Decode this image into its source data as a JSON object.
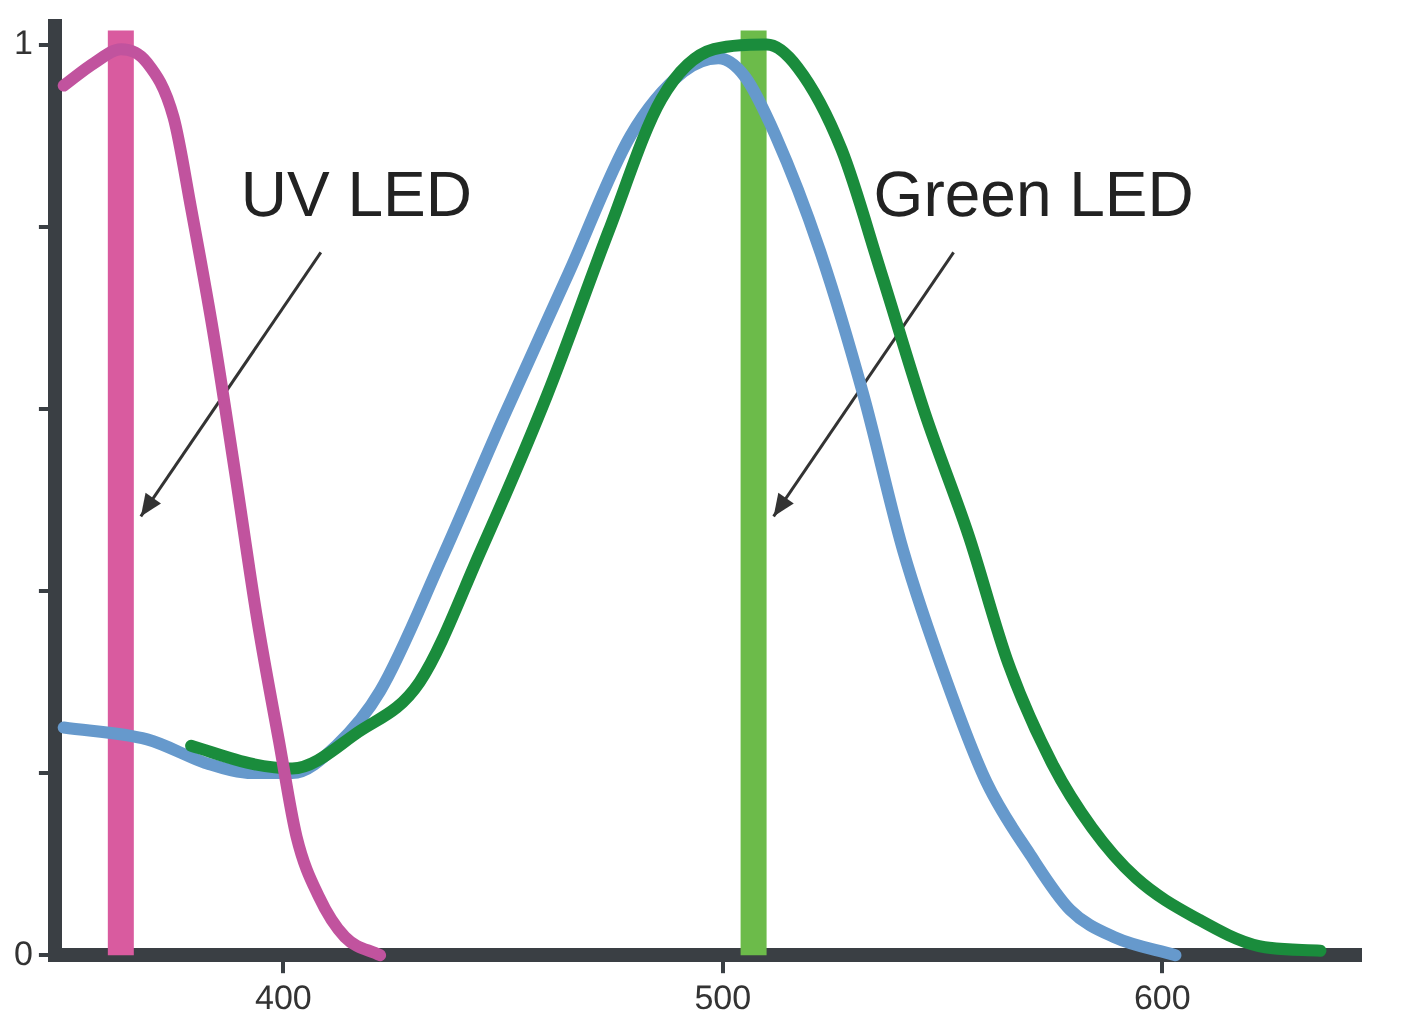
{
  "chart_data": {
    "type": "line",
    "xlim": [
      348,
      645
    ],
    "ylim": [
      0,
      1.02
    ],
    "xticks": [
      400,
      500,
      600
    ],
    "yticks": [
      {
        "value": 0,
        "label": "0"
      },
      {
        "value": 0.2,
        "label": null
      },
      {
        "value": 0.4,
        "label": null
      },
      {
        "value": 0.6,
        "label": null
      },
      {
        "value": 0.8,
        "label": null
      },
      {
        "value": 1,
        "label": "1"
      }
    ],
    "grid": false,
    "legend": false,
    "marker": "none",
    "line_style": "solid",
    "series": [
      {
        "color": "#c1539e",
        "x": [
          350,
          357,
          363,
          369,
          375,
          379,
          384,
          389,
          394,
          399,
          403,
          408,
          414,
          422
        ],
        "values": [
          0.955,
          0.98,
          0.995,
          0.98,
          0.92,
          0.82,
          0.685,
          0.53,
          0.37,
          0.235,
          0.13,
          0.065,
          0.02,
          0
        ]
      },
      {
        "color": "#1a8c3c",
        "x": [
          379,
          393,
          402,
          417,
          431,
          445,
          460,
          474,
          486,
          498,
          510,
          517,
          527,
          536,
          546,
          556,
          565,
          575,
          584,
          594,
          608,
          622,
          636
        ],
        "values": [
          0.23,
          0.21,
          0.205,
          0.245,
          0.3,
          0.445,
          0.615,
          0.795,
          0.94,
          0.995,
          1.0,
          0.975,
          0.885,
          0.75,
          0.595,
          0.46,
          0.32,
          0.21,
          0.14,
          0.085,
          0.04,
          0.01,
          0.005
        ]
      },
      {
        "color": "#6699cc",
        "x": [
          350,
          369,
          383,
          393,
          402,
          412,
          422,
          436,
          450,
          465,
          479,
          491,
          499,
          505,
          512,
          522,
          532,
          541,
          551,
          560,
          570,
          579,
          589,
          603
        ],
        "values": [
          0.25,
          0.237,
          0.21,
          0.2,
          0.2,
          0.23,
          0.29,
          0.435,
          0.59,
          0.75,
          0.9,
          0.97,
          0.985,
          0.965,
          0.9,
          0.775,
          0.615,
          0.445,
          0.3,
          0.19,
          0.11,
          0.05,
          0.02,
          0
        ]
      }
    ],
    "ref_lines": [
      {
        "axis": "x",
        "value": 363,
        "label": "UV LED",
        "color": "#d95b9f"
      },
      {
        "axis": "x",
        "value": 507,
        "label": "Green LED",
        "color": "#6cbb4a"
      }
    ]
  }
}
